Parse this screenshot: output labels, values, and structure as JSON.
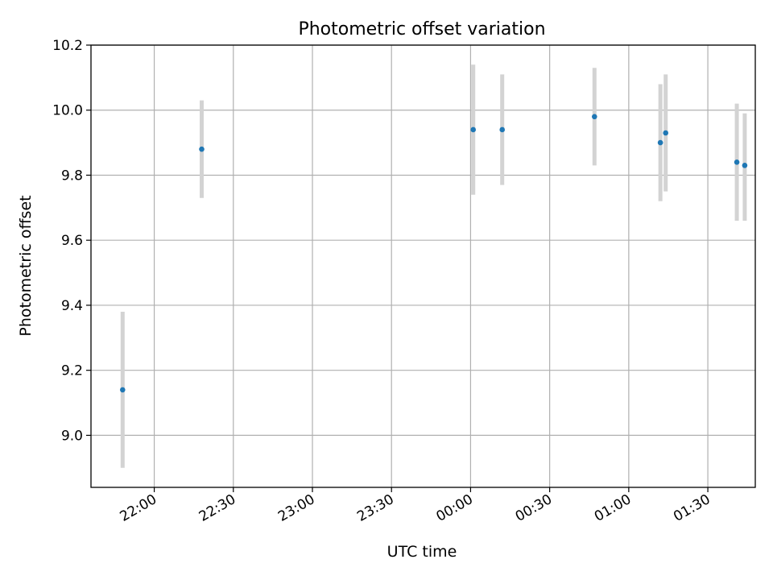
{
  "chart_data": {
    "type": "scatter",
    "title": "Photometric offset variation",
    "xlabel": "UTC time",
    "ylabel": "Photometric offset",
    "grid": true,
    "legend": "none",
    "x_axis": {
      "kind": "time",
      "start": "21:36",
      "end": "01:48",
      "ticks": [
        "22:00",
        "22:30",
        "23:00",
        "23:30",
        "00:00",
        "00:30",
        "01:00",
        "01:30"
      ]
    },
    "ylim": [
      8.84,
      10.2
    ],
    "y_ticks": [
      "9.0",
      "9.2",
      "9.4",
      "9.6",
      "9.8",
      "10.0",
      "10.2"
    ],
    "series": [
      {
        "points": [
          {
            "time": "21:48",
            "y": 9.14,
            "err_low": 8.9,
            "err_high": 9.38
          },
          {
            "time": "22:18",
            "y": 9.88,
            "err_low": 9.73,
            "err_high": 10.03
          },
          {
            "time": "00:01",
            "y": 9.94,
            "err_low": 9.74,
            "err_high": 10.14
          },
          {
            "time": "00:12",
            "y": 9.94,
            "err_low": 9.77,
            "err_high": 10.11
          },
          {
            "time": "00:47",
            "y": 9.98,
            "err_low": 9.83,
            "err_high": 10.13
          },
          {
            "time": "01:12",
            "y": 9.9,
            "err_low": 9.72,
            "err_high": 10.08
          },
          {
            "time": "01:14",
            "y": 9.93,
            "err_low": 9.75,
            "err_high": 10.11
          },
          {
            "time": "01:41",
            "y": 9.84,
            "err_low": 9.66,
            "err_high": 10.02
          },
          {
            "time": "01:44",
            "y": 9.83,
            "err_low": 9.66,
            "err_high": 9.99
          }
        ]
      }
    ],
    "colors": {
      "point": "#1f77b4",
      "errorbar": "#d3d3d3",
      "grid": "#b0b0b0",
      "axes": "#000000"
    }
  }
}
